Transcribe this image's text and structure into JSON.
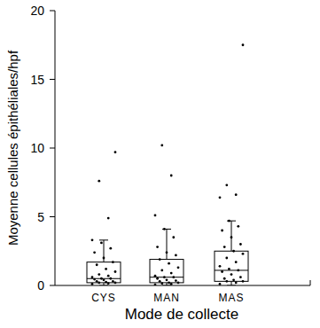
{
  "chart_data": {
    "type": "box",
    "x_label": "Mode de collecte",
    "y_label": "Moyenne cellules épithéliales/hpf",
    "categories": [
      "CYS",
      "MAN",
      "MAS"
    ],
    "ylim": [
      0,
      20
    ],
    "yticks": [
      0,
      5,
      10,
      15,
      20
    ],
    "color": "#000000",
    "boxes": [
      {
        "whisker_low": 0,
        "q1": 0.2,
        "median": 0.5,
        "q3": 1.7,
        "whisker_high": 3.3,
        "points": [
          0.1,
          0.15,
          0.2,
          0.2,
          0.25,
          0.3,
          0.3,
          0.4,
          0.45,
          0.5,
          0.5,
          0.6,
          0.7,
          0.8,
          1.0,
          1.2,
          1.5,
          1.7,
          2.0,
          2.4,
          2.7,
          3.1,
          3.3,
          4.9,
          7.6,
          9.7
        ]
      },
      {
        "whisker_low": 0,
        "q1": 0.2,
        "median": 0.6,
        "q3": 1.9,
        "whisker_high": 4.1,
        "points": [
          0.05,
          0.1,
          0.15,
          0.2,
          0.2,
          0.3,
          0.35,
          0.4,
          0.5,
          0.6,
          0.6,
          0.7,
          0.9,
          1.1,
          1.3,
          1.6,
          1.9,
          2.2,
          2.4,
          2.8,
          3.5,
          4.1,
          5.1,
          8.0,
          10.2
        ]
      },
      {
        "whisker_low": 0,
        "q1": 0.3,
        "median": 1.1,
        "q3": 2.5,
        "whisker_high": 4.7,
        "points": [
          0.1,
          0.2,
          0.3,
          0.3,
          0.4,
          0.5,
          0.6,
          0.8,
          1.0,
          1.1,
          1.2,
          1.4,
          1.7,
          2.0,
          2.3,
          2.5,
          2.8,
          3.0,
          3.5,
          4.0,
          4.3,
          4.7,
          6.4,
          6.6,
          7.3,
          17.5
        ]
      }
    ]
  }
}
